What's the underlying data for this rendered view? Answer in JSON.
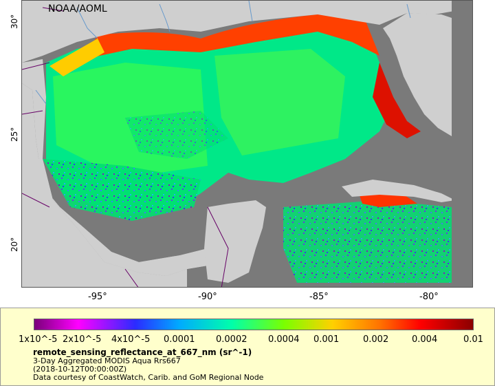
{
  "map": {
    "credit": "NOAA/AOML",
    "lat_ticks": [
      "30°",
      "25°",
      "20°"
    ],
    "lon_ticks": [
      "-95°",
      "-90°",
      "-85°",
      "-80°"
    ],
    "colors": {
      "land": "#cfcfcf",
      "nodata": "#7a7a7a",
      "rivers": "#6699cc",
      "borders": "#660066"
    }
  },
  "legend": {
    "ticks": [
      "1x10^-5",
      "2x10^-5",
      "4x10^-5",
      "0.0001",
      "0.0002",
      "0.0004",
      "0.001",
      "0.002",
      "0.004",
      "0.01"
    ],
    "title": "remote_sensing_reflectance_at_667_nm (sr^-1)",
    "subtitle": "3-Day Aggregated MODIS Aqua Rrs667",
    "date": "(2018-10-12T00:00:00Z)",
    "credit": "Data courtesy of CoastWatch, Carib. and GoM Regional Node"
  }
}
